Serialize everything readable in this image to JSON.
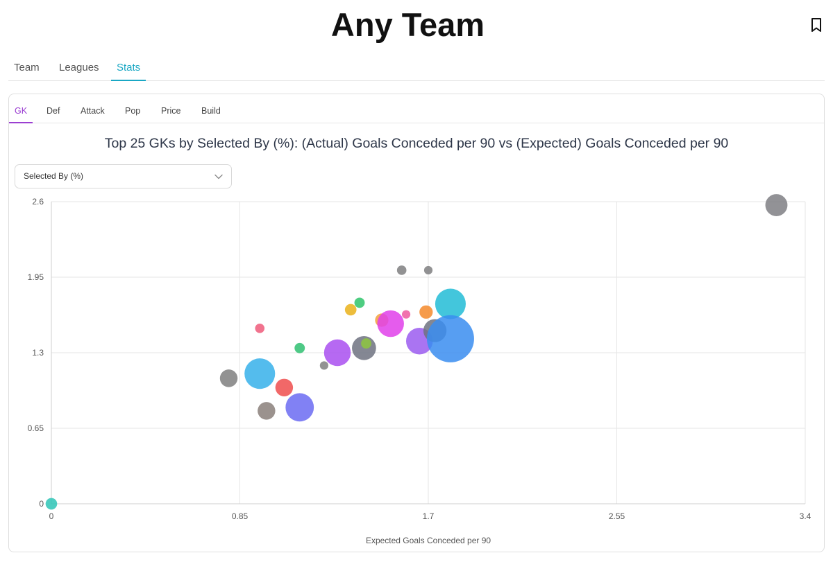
{
  "header": {
    "title": "Any Team",
    "bookmark_icon": "bookmark-icon"
  },
  "main_tabs": [
    {
      "label": "Team",
      "active": false
    },
    {
      "label": "Leagues",
      "active": false
    },
    {
      "label": "Stats",
      "active": true
    }
  ],
  "sub_tabs": [
    {
      "label": "GK",
      "active": true
    },
    {
      "label": "Def",
      "active": false
    },
    {
      "label": "Attack",
      "active": false
    },
    {
      "label": "Pop",
      "active": false
    },
    {
      "label": "Price",
      "active": false
    },
    {
      "label": "Build",
      "active": false
    }
  ],
  "metric_select": {
    "value": "Selected By (%)",
    "icon": "chevron-down-icon"
  },
  "colors": {
    "accent_main_tab": "#19a7c4",
    "accent_sub_tab": "#9b3fd1"
  },
  "chart_data": {
    "type": "scatter",
    "title": "Top 25 GKs by Selected By (%): (Actual) Goals Conceded per 90 vs (Expected) Goals Conceded per 90",
    "xlabel": "Expected Goals Conceded per 90",
    "ylabel": "",
    "xlim": [
      0,
      3.4
    ],
    "ylim": [
      0,
      2.6
    ],
    "x_ticks": [
      "0",
      "0.85",
      "1.7",
      "2.55",
      "3.4"
    ],
    "y_ticks": [
      "0",
      "0.65",
      "1.3",
      "1.95",
      "2.6"
    ],
    "grid": true,
    "size_metric": "Selected By (%)",
    "points": [
      {
        "x": 0.0,
        "y": 0.0,
        "size": 1.5,
        "color": "#2ec4b6"
      },
      {
        "x": 0.8,
        "y": 1.08,
        "size": 3.5,
        "color": "#7f7f7f"
      },
      {
        "x": 0.94,
        "y": 1.51,
        "size": 1.0,
        "color": "#ef5a7a"
      },
      {
        "x": 0.94,
        "y": 1.12,
        "size": 10.5,
        "color": "#36b0ea"
      },
      {
        "x": 0.97,
        "y": 0.8,
        "size": 3.5,
        "color": "#8a7f7a"
      },
      {
        "x": 1.05,
        "y": 1.0,
        "size": 3.5,
        "color": "#ee4d4d"
      },
      {
        "x": 1.12,
        "y": 1.34,
        "size": 1.2,
        "color": "#2fbf71"
      },
      {
        "x": 1.12,
        "y": 0.83,
        "size": 9.0,
        "color": "#6b6bf2"
      },
      {
        "x": 1.23,
        "y": 1.19,
        "size": 0.8,
        "color": "#7f7f7f"
      },
      {
        "x": 1.29,
        "y": 1.3,
        "size": 8.0,
        "color": "#a94ff0"
      },
      {
        "x": 1.35,
        "y": 1.67,
        "size": 1.5,
        "color": "#eab21a"
      },
      {
        "x": 1.39,
        "y": 1.73,
        "size": 1.2,
        "color": "#2fc46b"
      },
      {
        "x": 1.41,
        "y": 1.34,
        "size": 6.5,
        "color": "#6e7280"
      },
      {
        "x": 1.42,
        "y": 1.38,
        "size": 1.2,
        "color": "#8dc63f"
      },
      {
        "x": 1.49,
        "y": 1.58,
        "size": 2.0,
        "color": "#f2a03c"
      },
      {
        "x": 1.53,
        "y": 1.55,
        "size": 8.0,
        "color": "#e040ea"
      },
      {
        "x": 1.58,
        "y": 2.01,
        "size": 1.0,
        "color": "#7f7f80"
      },
      {
        "x": 1.6,
        "y": 1.63,
        "size": 0.8,
        "color": "#ef5aa0"
      },
      {
        "x": 1.66,
        "y": 1.4,
        "size": 8.0,
        "color": "#9b5cf0"
      },
      {
        "x": 1.69,
        "y": 1.65,
        "size": 2.0,
        "color": "#f58a2c"
      },
      {
        "x": 1.7,
        "y": 2.01,
        "size": 0.8,
        "color": "#7f7f80"
      },
      {
        "x": 1.73,
        "y": 1.49,
        "size": 6.0,
        "color": "#6e7280"
      },
      {
        "x": 1.8,
        "y": 1.72,
        "size": 10.5,
        "color": "#22bcd6"
      },
      {
        "x": 1.8,
        "y": 1.42,
        "size": 25.0,
        "color": "#3a8df0"
      },
      {
        "x": 3.27,
        "y": 2.57,
        "size": 5.5,
        "color": "#7f7f84"
      }
    ]
  }
}
